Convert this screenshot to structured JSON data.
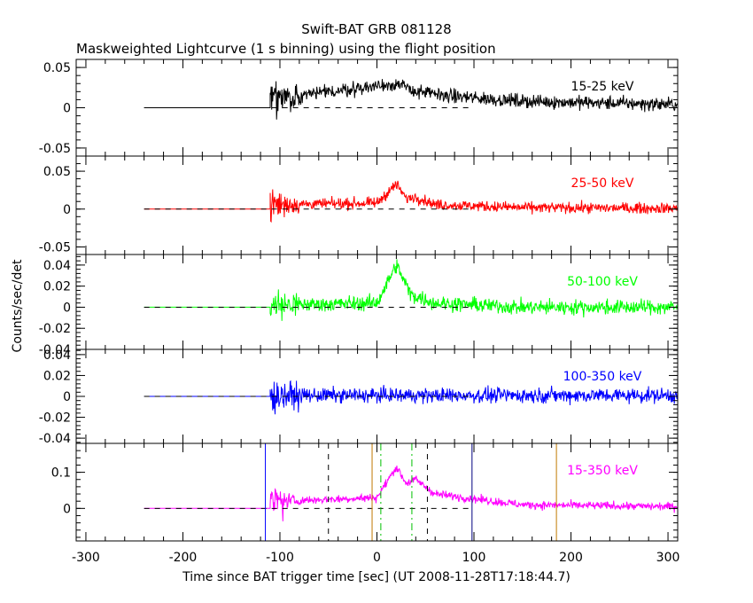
{
  "chart_data": {
    "type": "line",
    "title": "Swift-BAT GRB 081128",
    "subtitle": "Maskweighted Lightcurve (1 s binning) using the flight position",
    "xlabel": "Time since BAT trigger time [sec] (UT 2008-11-28T17:18:44.7)",
    "ylabel": "Counts/sec/det",
    "xlim": [
      -310,
      310
    ],
    "xticks": [
      -300,
      -200,
      -100,
      0,
      100,
      200,
      300
    ],
    "xtick_labels": [
      "-300",
      "-200",
      "-100",
      "0",
      "100",
      "200",
      "300"
    ],
    "grid": false,
    "panels": [
      {
        "band": "15-25 keV",
        "color": "#000000",
        "ylim": [
          -0.06,
          0.06
        ],
        "yticks": [
          -0.05,
          0,
          0.05
        ],
        "ytick_labels": [
          "-0.05",
          "0",
          "0.05"
        ],
        "noise": 0.006,
        "peak": {
          "t": [
            -100,
            20,
            40,
            80,
            150,
            310
          ],
          "v": [
            0.012,
            0.03,
            0.02,
            0.014,
            0.008,
            0.004
          ]
        }
      },
      {
        "band": "25-50 keV",
        "color": "#ff0000",
        "ylim": [
          -0.06,
          0.07
        ],
        "yticks": [
          -0.05,
          0,
          0.05
        ],
        "ytick_labels": [
          "-0.05",
          "0",
          "0.05"
        ],
        "noise": 0.005,
        "peak": {
          "t": [
            -100,
            0,
            20,
            30,
            40,
            60,
            150,
            310
          ],
          "v": [
            0.006,
            0.008,
            0.033,
            0.014,
            0.016,
            0.006,
            0.002,
            0.001
          ]
        }
      },
      {
        "band": "50-100 keV",
        "color": "#00ff00",
        "ylim": [
          -0.04,
          0.05
        ],
        "yticks": [
          -0.04,
          -0.02,
          0,
          0.02,
          0.04
        ],
        "ytick_labels": [
          "-0.04",
          "-0.02",
          "0",
          "0.02",
          "0.04"
        ],
        "noise": 0.005,
        "peak": {
          "t": [
            -100,
            0,
            20,
            35,
            60,
            150,
            310
          ],
          "v": [
            0.002,
            0.004,
            0.04,
            0.012,
            0.004,
            0.0,
            0.0
          ]
        }
      },
      {
        "band": "100-350 keV",
        "color": "#0000ff",
        "ylim": [
          -0.045,
          0.045
        ],
        "yticks": [
          -0.04,
          -0.02,
          0,
          0.02,
          0.04
        ],
        "ytick_labels": [
          "-0.04",
          "-0.02",
          "0",
          "0.02",
          "0.04"
        ],
        "noise": 0.005,
        "peak": {
          "t": [
            -100,
            310
          ],
          "v": [
            0.001,
            0.001
          ]
        }
      },
      {
        "band": "15-350 keV",
        "color": "#ff00ff",
        "ylim": [
          -0.09,
          0.18
        ],
        "yticks": [
          0,
          0.1
        ],
        "ytick_labels": [
          "0",
          "0.1"
        ],
        "noise": 0.008,
        "peak": {
          "t": [
            -100,
            0,
            20,
            30,
            40,
            60,
            150,
            310
          ],
          "v": [
            0.02,
            0.03,
            0.115,
            0.07,
            0.08,
            0.04,
            0.01,
            0.005
          ]
        }
      }
    ],
    "pre_burst": {
      "start": -240,
      "end": -110,
      "value": 0
    },
    "vertical_markers": [
      {
        "x": -115,
        "color": "#0000ff",
        "style": "solid"
      },
      {
        "x": 98,
        "color": "#000080",
        "style": "solid"
      },
      {
        "x": -5,
        "color": "#c07800",
        "style": "solid"
      },
      {
        "x": 185,
        "color": "#c07800",
        "style": "solid"
      },
      {
        "x": -50,
        "color": "#000000",
        "style": "dashed"
      },
      {
        "x": 52,
        "color": "#000000",
        "style": "dashed"
      },
      {
        "x": 4,
        "color": "#00c000",
        "style": "dashdot"
      },
      {
        "x": 36,
        "color": "#00c000",
        "style": "dashdot"
      }
    ],
    "zero_dash_range": [
      -240,
      95
    ]
  }
}
